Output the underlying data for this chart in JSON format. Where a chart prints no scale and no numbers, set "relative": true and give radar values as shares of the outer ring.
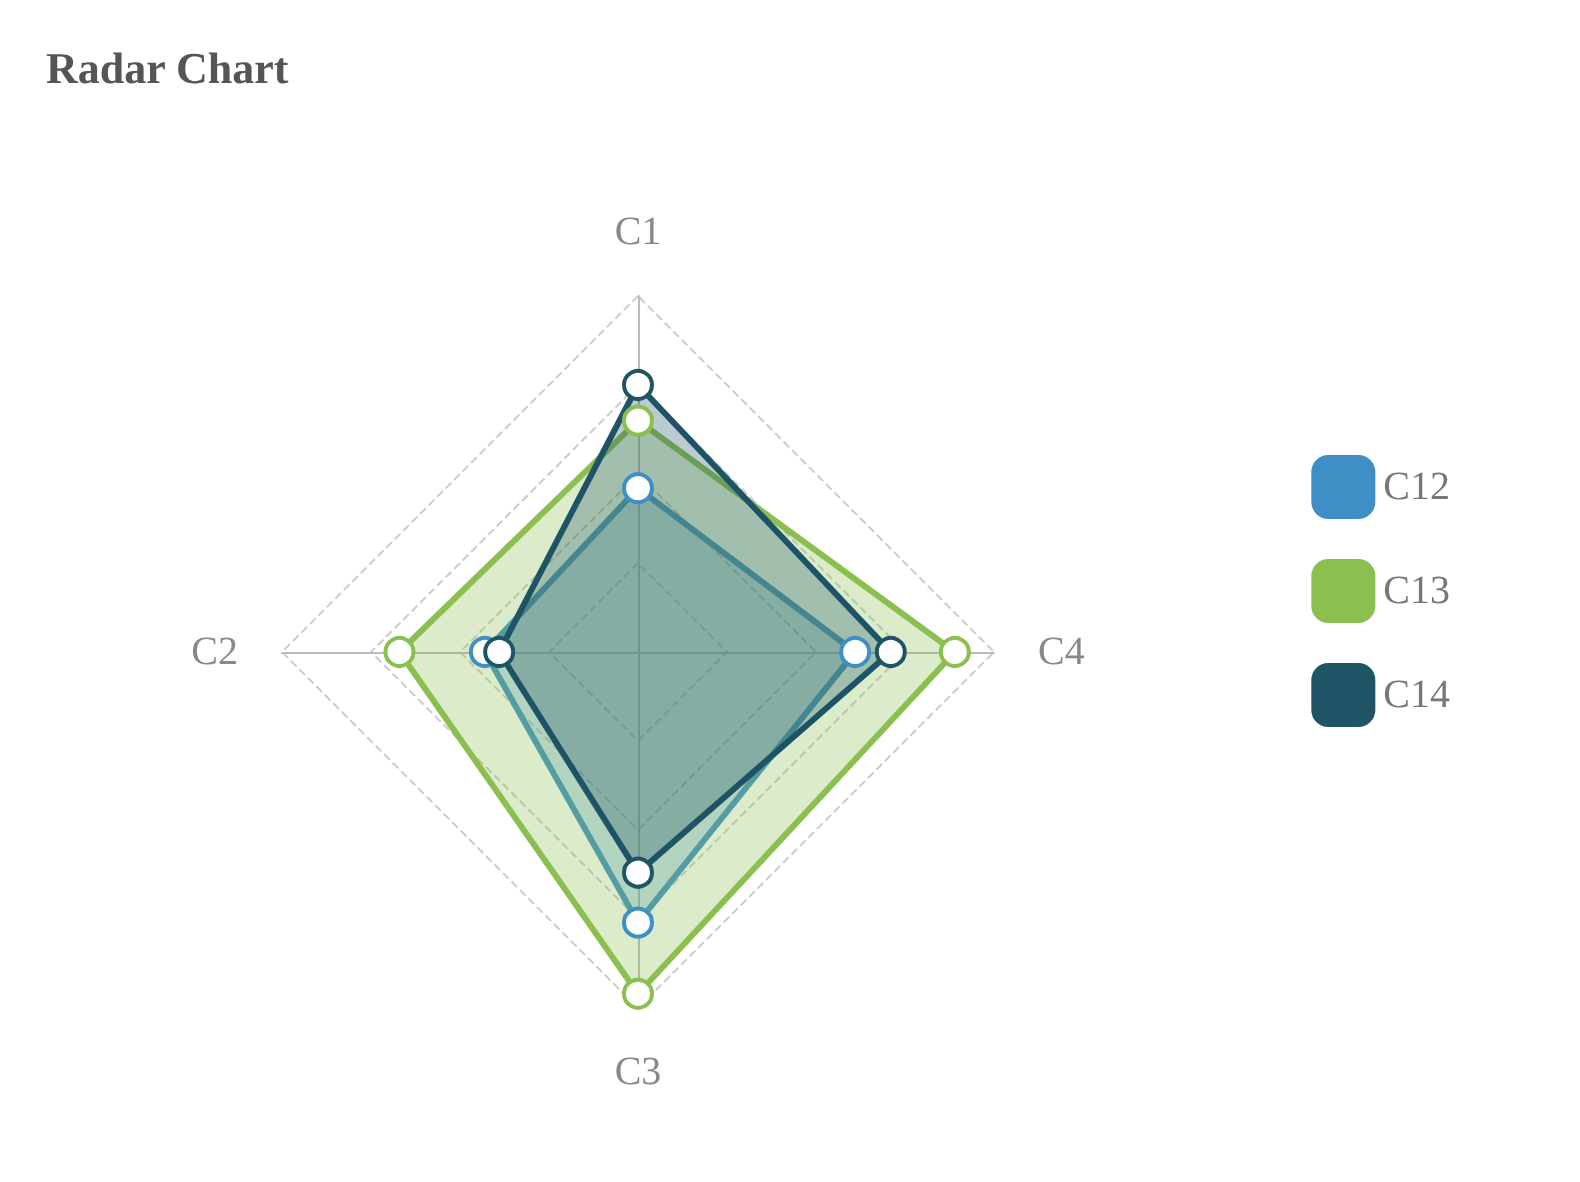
{
  "chart_data": {
    "type": "radar",
    "title": "Radar Chart",
    "categories": [
      "C1",
      "C4",
      "C3",
      "C2"
    ],
    "relative": true,
    "legend": "right",
    "marker": "circle",
    "grid": true,
    "series": [
      {
        "name": "C12",
        "color": "#3d8fc6",
        "values": [
          0.46,
          0.61,
          0.76,
          0.43
        ]
      },
      {
        "name": "C13",
        "color": "#8bbf4f",
        "values": [
          0.65,
          0.89,
          0.96,
          0.67
        ]
      },
      {
        "name": "C14",
        "color": "#1e5466",
        "values": [
          0.75,
          0.71,
          0.62,
          0.39
        ]
      }
    ]
  }
}
